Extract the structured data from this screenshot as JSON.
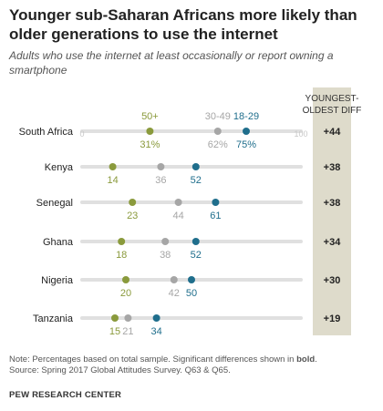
{
  "title": "Younger sub-Saharan Africans more likely than older generations to use the internet",
  "subtitle": "Adults who use the internet at least occasionally or report owning a smartphone",
  "diff_header": "YOUNGEST-OLDEST DIFF",
  "note_prefix": "Note: Percentages based on total sample. Significant differences shown in ",
  "note_bold": "bold",
  "note_suffix": ".",
  "source": "Source: Spring 2017 Global Attitudes Survey. Q63 & Q65.",
  "brand": "PEW RESEARCH CENTER",
  "colors": {
    "age_50_plus": "#8a9a3c",
    "age_30_49": "#a6a6a6",
    "age_18_29": "#1f6e8c",
    "track": "#e0e0e0",
    "diff_panel": "#dedbcb"
  },
  "chart_data": {
    "type": "dot",
    "title": "Younger sub-Saharan Africans more likely than older generations to use the internet",
    "subtitle": "Adults who use the internet at least occasionally or report owning a smartphone",
    "xlim": [
      0,
      100
    ],
    "axis_labels": [
      "0",
      "100"
    ],
    "categories": [
      "South Africa",
      "Kenya",
      "Senegal",
      "Ghana",
      "Nigeria",
      "Tanzania"
    ],
    "series": [
      {
        "name": "50+",
        "values": [
          31,
          14,
          23,
          18,
          20,
          15
        ]
      },
      {
        "name": "30-49",
        "values": [
          62,
          36,
          44,
          38,
          42,
          21
        ]
      },
      {
        "name": "18-29",
        "values": [
          75,
          52,
          61,
          52,
          50,
          34
        ]
      }
    ],
    "value_labels": [
      [
        "31%",
        "62%",
        "75%"
      ],
      [
        "14",
        "36",
        "52"
      ],
      [
        "23",
        "44",
        "61"
      ],
      [
        "18",
        "38",
        "52"
      ],
      [
        "20",
        "42",
        "50"
      ],
      [
        "15",
        "21",
        "34"
      ]
    ],
    "diff": [
      "+44",
      "+38",
      "+38",
      "+34",
      "+30",
      "+19"
    ]
  }
}
